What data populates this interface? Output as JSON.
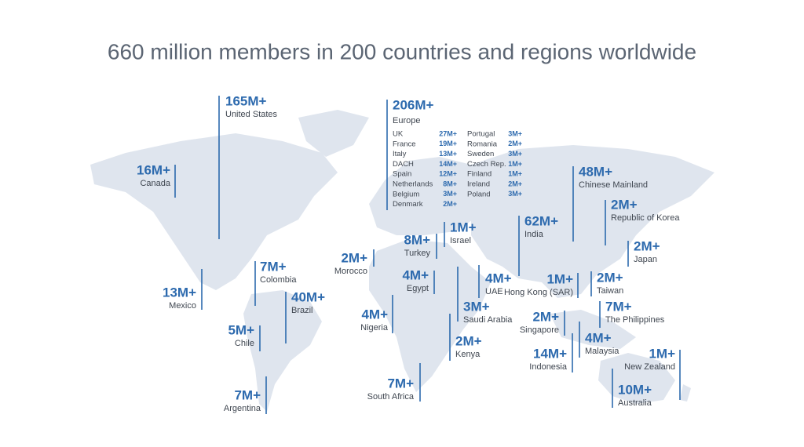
{
  "title": "660 million members in 200 countries and regions worldwide",
  "regions": [
    {
      "name": "United States",
      "value": "165M+"
    },
    {
      "name": "Canada",
      "value": "16M+"
    },
    {
      "name": "Mexico",
      "value": "13M+"
    },
    {
      "name": "Colombia",
      "value": "7M+"
    },
    {
      "name": "Brazil",
      "value": "40M+"
    },
    {
      "name": "Chile",
      "value": "5M+"
    },
    {
      "name": "Argentina",
      "value": "7M+"
    },
    {
      "name": "Morocco",
      "value": "2M+"
    },
    {
      "name": "Nigeria",
      "value": "4M+"
    },
    {
      "name": "South Africa",
      "value": "7M+"
    },
    {
      "name": "Turkey",
      "value": "8M+"
    },
    {
      "name": "Israel",
      "value": "1M+"
    },
    {
      "name": "Egypt",
      "value": "4M+"
    },
    {
      "name": "Saudi Arabia",
      "value": "3M+"
    },
    {
      "name": "Kenya",
      "value": "2M+"
    },
    {
      "name": "UAE",
      "value": "4M+"
    },
    {
      "name": "India",
      "value": "62M+"
    },
    {
      "name": "Chinese Mainland",
      "value": "48M+"
    },
    {
      "name": "Republic of Korea",
      "value": "2M+"
    },
    {
      "name": "Japan",
      "value": "2M+"
    },
    {
      "name": "Hong Kong (SAR)",
      "value": "1M+"
    },
    {
      "name": "Taiwan",
      "value": "2M+"
    },
    {
      "name": "The Philippines",
      "value": "7M+"
    },
    {
      "name": "Singapore",
      "value": "2M+"
    },
    {
      "name": "Malaysia",
      "value": "4M+"
    },
    {
      "name": "Indonesia",
      "value": "14M+"
    },
    {
      "name": "New Zealand",
      "value": "1M+"
    },
    {
      "name": "Australia",
      "value": "10M+"
    }
  ],
  "europe": {
    "name": "Europe",
    "value": "206M+",
    "countries": [
      {
        "name": "UK",
        "value": "27M+"
      },
      {
        "name": "France",
        "value": "19M+"
      },
      {
        "name": "Italy",
        "value": "13M+"
      },
      {
        "name": "DACH",
        "value": "14M+"
      },
      {
        "name": "Spain",
        "value": "12M+"
      },
      {
        "name": "Netherlands",
        "value": "8M+"
      },
      {
        "name": "Belgium",
        "value": "3M+"
      },
      {
        "name": "Denmark",
        "value": "2M+"
      },
      {
        "name": "Portugal",
        "value": "3M+"
      },
      {
        "name": "Romania",
        "value": "2M+"
      },
      {
        "name": "Sweden",
        "value": "3M+"
      },
      {
        "name": "Czech Rep.",
        "value": "1M+"
      },
      {
        "name": "Finland",
        "value": "1M+"
      },
      {
        "name": "Ireland",
        "value": "2M+"
      },
      {
        "name": "Poland",
        "value": "3M+"
      }
    ]
  }
}
